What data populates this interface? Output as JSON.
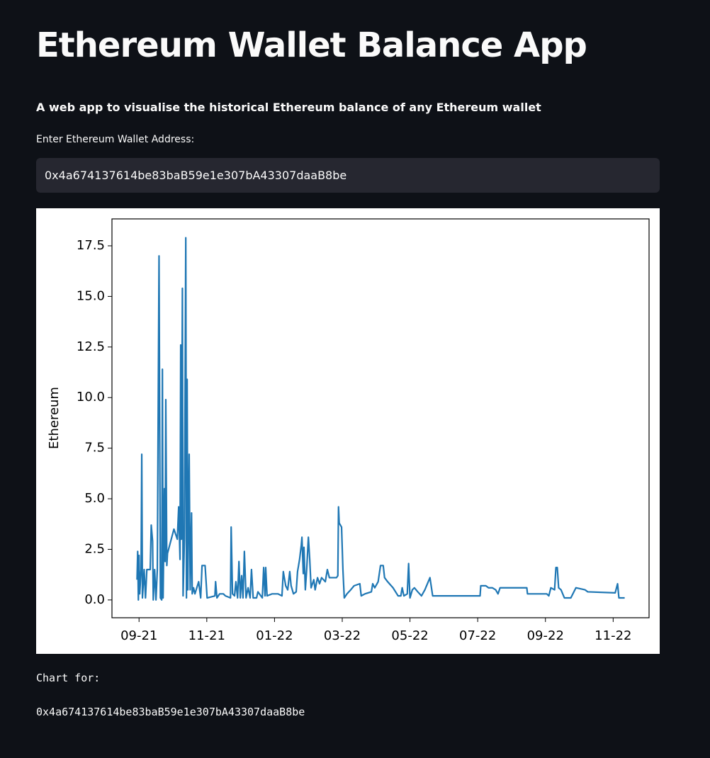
{
  "header": {
    "title": "Ethereum Wallet Balance App",
    "subtitle": "A web app to visualise the historical Ethereum balance of any Ethereum wallet"
  },
  "form": {
    "label": "Enter Ethereum Wallet Address:",
    "value": "0x4a674137614be83baB59e1e307bA43307daaB8be"
  },
  "chart_data": {
    "type": "line",
    "ylabel": "Ethereum",
    "color": "#1f77b4",
    "x": [
      -0.06,
      -0.04,
      -0.02,
      0,
      0.02,
      0.06,
      0.08,
      0.1,
      0.15,
      0.19,
      0.23,
      0.33,
      0.36,
      0.4,
      0.42,
      0.46,
      0.5,
      0.54,
      0.59,
      0.63,
      0.67,
      0.69,
      0.71,
      0.75,
      0.77,
      0.79,
      0.82,
      0.84,
      1.03,
      1.13,
      1.17,
      1.21,
      1.23,
      1.25,
      1.28,
      1.3,
      1.34,
      1.38,
      1.4,
      1.42,
      1.44,
      1.48,
      1.51,
      1.55,
      1.57,
      1.61,
      1.65,
      1.76,
      1.82,
      1.86,
      1.95,
      2.01,
      2.24,
      2.26,
      2.3,
      2.38,
      2.49,
      2.55,
      2.7,
      2.72,
      2.76,
      2.82,
      2.86,
      2.91,
      2.95,
      2.99,
      3.03,
      3.07,
      3.11,
      3.16,
      3.22,
      3.28,
      3.32,
      3.37,
      3.47,
      3.51,
      3.64,
      3.68,
      3.72,
      3.74,
      3.78,
      3.93,
      4.1,
      4.22,
      4.26,
      4.33,
      4.39,
      4.45,
      4.49,
      4.56,
      4.64,
      4.68,
      4.74,
      4.79,
      4.81,
      4.85,
      4.87,
      4.91,
      4.95,
      5.0,
      5.04,
      5.08,
      5.16,
      5.2,
      5.27,
      5.33,
      5.39,
      5.5,
      5.56,
      5.62,
      5.73,
      5.83,
      5.87,
      5.89,
      5.91,
      5.98,
      6.02,
      6.06,
      6.14,
      6.25,
      6.35,
      6.52,
      6.56,
      6.67,
      6.86,
      6.9,
      6.96,
      7.06,
      7.13,
      7.21,
      7.25,
      7.34,
      7.5,
      7.65,
      7.73,
      7.77,
      7.82,
      7.92,
      7.96,
      8.0,
      8.07,
      8.13,
      8.23,
      8.34,
      8.44,
      8.59,
      8.67,
      9.28,
      10.07,
      10.09,
      10.24,
      10.32,
      10.43,
      10.53,
      10.6,
      10.66,
      11.45,
      11.47,
      12.04,
      12.1,
      12.16,
      12.27,
      12.31,
      12.35,
      12.39,
      12.46,
      12.56,
      12.75,
      12.9,
      13.17,
      13.25,
      14.06,
      14.13,
      14.17,
      14.34
    ],
    "values": [
      1.0,
      2.4,
      0.0,
      2.2,
      0.3,
      1.5,
      7.2,
      0.1,
      1.5,
      0.1,
      1.5,
      1.5,
      3.7,
      2.9,
      0.0,
      1.5,
      0.0,
      1.5,
      17.0,
      0.1,
      0.0,
      11.4,
      0.1,
      5.5,
      1.9,
      9.9,
      1.7,
      2.3,
      3.5,
      3.0,
      4.6,
      2.0,
      12.6,
      3.0,
      15.4,
      0.2,
      3.0,
      17.9,
      0.1,
      10.9,
      0.5,
      7.2,
      0.5,
      4.3,
      0.3,
      0.6,
      0.3,
      0.9,
      0.1,
      1.7,
      1.7,
      0.1,
      0.2,
      0.9,
      0.1,
      0.3,
      0.3,
      0.2,
      0.1,
      3.6,
      0.3,
      0.2,
      0.9,
      0.1,
      1.9,
      0.1,
      1.2,
      0.1,
      2.4,
      0.1,
      0.6,
      0.1,
      1.5,
      0.1,
      0.1,
      0.4,
      0.1,
      1.6,
      0.2,
      1.6,
      0.2,
      0.3,
      0.3,
      0.2,
      1.4,
      0.7,
      0.5,
      1.4,
      0.7,
      0.3,
      0.4,
      1.4,
      2.0,
      2.7,
      3.1,
      1.3,
      2.6,
      0.5,
      1.5,
      3.1,
      2.0,
      0.6,
      1.0,
      0.5,
      1.1,
      0.8,
      1.1,
      0.9,
      1.5,
      1.1,
      1.1,
      1.1,
      1.2,
      4.6,
      3.8,
      3.6,
      1.5,
      0.1,
      0.3,
      0.5,
      0.7,
      0.8,
      0.2,
      0.3,
      0.4,
      0.8,
      0.6,
      0.9,
      1.7,
      1.7,
      1.1,
      0.9,
      0.6,
      0.2,
      0.2,
      0.6,
      0.2,
      0.3,
      1.8,
      0.1,
      0.5,
      0.6,
      0.4,
      0.2,
      0.5,
      1.1,
      0.2,
      0.2,
      0.2,
      0.7,
      0.7,
      0.6,
      0.6,
      0.5,
      0.3,
      0.6,
      0.6,
      0.3,
      0.3,
      0.2,
      0.6,
      0.5,
      1.6,
      1.6,
      0.6,
      0.5,
      0.1,
      0.1,
      0.6,
      0.5,
      0.4,
      0.35,
      0.8,
      0.1,
      0.1
    ],
    "xlim": [
      -0.8,
      15.06
    ],
    "xticks": [
      {
        "value": 0,
        "label": "09-21"
      },
      {
        "value": 2,
        "label": "11-21"
      },
      {
        "value": 4,
        "label": "01-22"
      },
      {
        "value": 6,
        "label": "03-22"
      },
      {
        "value": 8,
        "label": "05-22"
      },
      {
        "value": 10,
        "label": "07-22"
      },
      {
        "value": 12,
        "label": "09-22"
      },
      {
        "value": 14,
        "label": "11-22"
      }
    ],
    "ylim": [
      -0.88,
      18.83
    ],
    "yticks": [
      {
        "value": 0,
        "label": "0.0"
      },
      2.5,
      {
        "value": 5,
        "label": "5.0"
      },
      7.5,
      {
        "value": 10,
        "label": "10.0"
      },
      12.5,
      {
        "value": 15,
        "label": "15.0"
      },
      17.5
    ]
  },
  "footer": {
    "caption": "Chart for:",
    "address": "0x4a674137614be83baB59e1e307bA43307daaB8be"
  }
}
